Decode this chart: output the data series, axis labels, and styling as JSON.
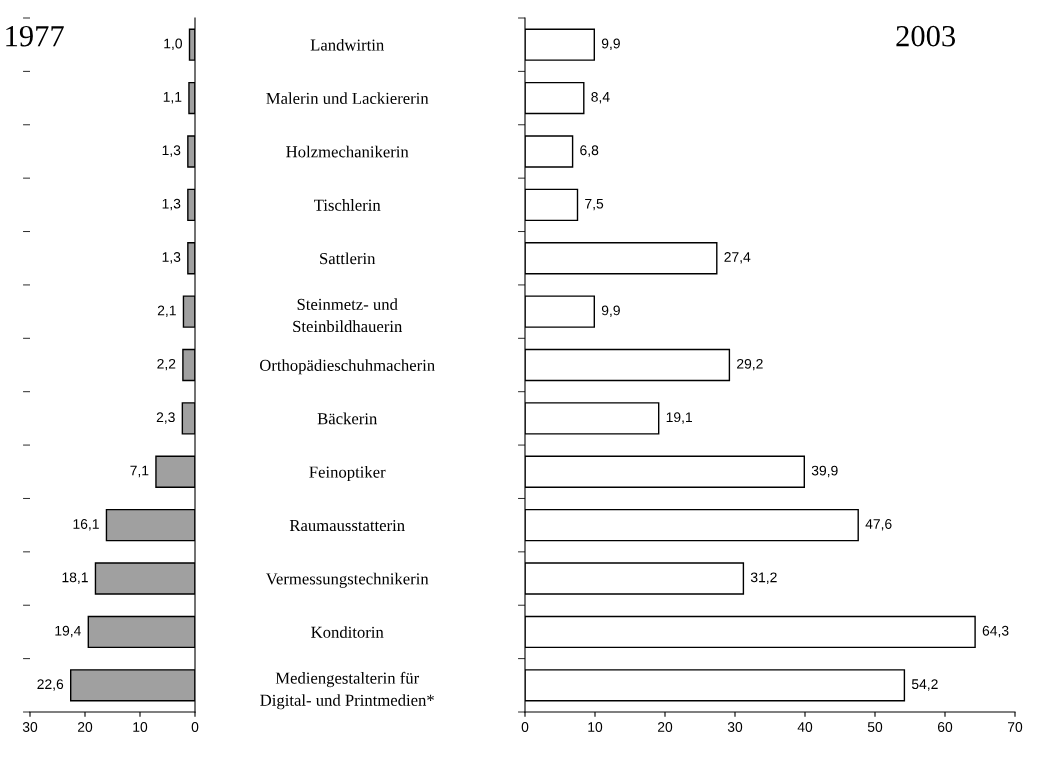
{
  "chart_data": [
    {
      "type": "bar",
      "orientation": "horizontal",
      "title": "1977",
      "categories": [
        null,
        null,
        null,
        null,
        null,
        null,
        null,
        null,
        null,
        null,
        null,
        null,
        null
      ],
      "values": [
        1.0,
        1.1,
        1.3,
        1.3,
        1.3,
        2.1,
        2.2,
        2.3,
        7.1,
        16.1,
        18.1,
        19.4,
        22.6
      ],
      "value_labels": [
        "1,0",
        "1,1",
        "1,3",
        "1,3",
        "1,3",
        "2,1",
        "2,2",
        "2,3",
        "7,1",
        "16,1",
        "18,1",
        "19,4",
        "22,6"
      ],
      "color": "#a0a0a0",
      "xlim": [
        30,
        0
      ],
      "xticks": [
        0,
        10,
        20,
        30
      ],
      "tick_labels": "x",
      "grid": false,
      "legend": false
    },
    {
      "type": "bar",
      "orientation": "horizontal",
      "title": "2003",
      "categories": [
        "Landwirtin",
        "Malerin und Lackiererin",
        "Holzmechanikerin",
        "Tischlerin",
        "Sattlerin",
        "Steinmetz- und\nSteinbildhauerin",
        "Orthopädieschuhmacherin",
        "Bäckerin",
        "Feinoptiker",
        "Raumausstatterin",
        "Vermessungstechnikerin",
        "Konditorin",
        "Mediengestalterin für\nDigital- und Printmedien*"
      ],
      "values": [
        9.9,
        8.4,
        6.8,
        7.5,
        27.4,
        9.9,
        29.2,
        19.1,
        39.9,
        47.6,
        31.2,
        64.3,
        54.2
      ],
      "value_labels": [
        "9,9",
        "8,4",
        "6,8",
        "7,5",
        "27,4",
        "9,9",
        "29,2",
        "19,1",
        "39,9",
        "47,6",
        "31,2",
        "64,3",
        "54,2"
      ],
      "color": "#ffffff",
      "xlim": [
        0,
        70
      ],
      "xticks": [
        0,
        10,
        20,
        30,
        40,
        50,
        60,
        70
      ],
      "grid": false,
      "legend": false
    }
  ]
}
